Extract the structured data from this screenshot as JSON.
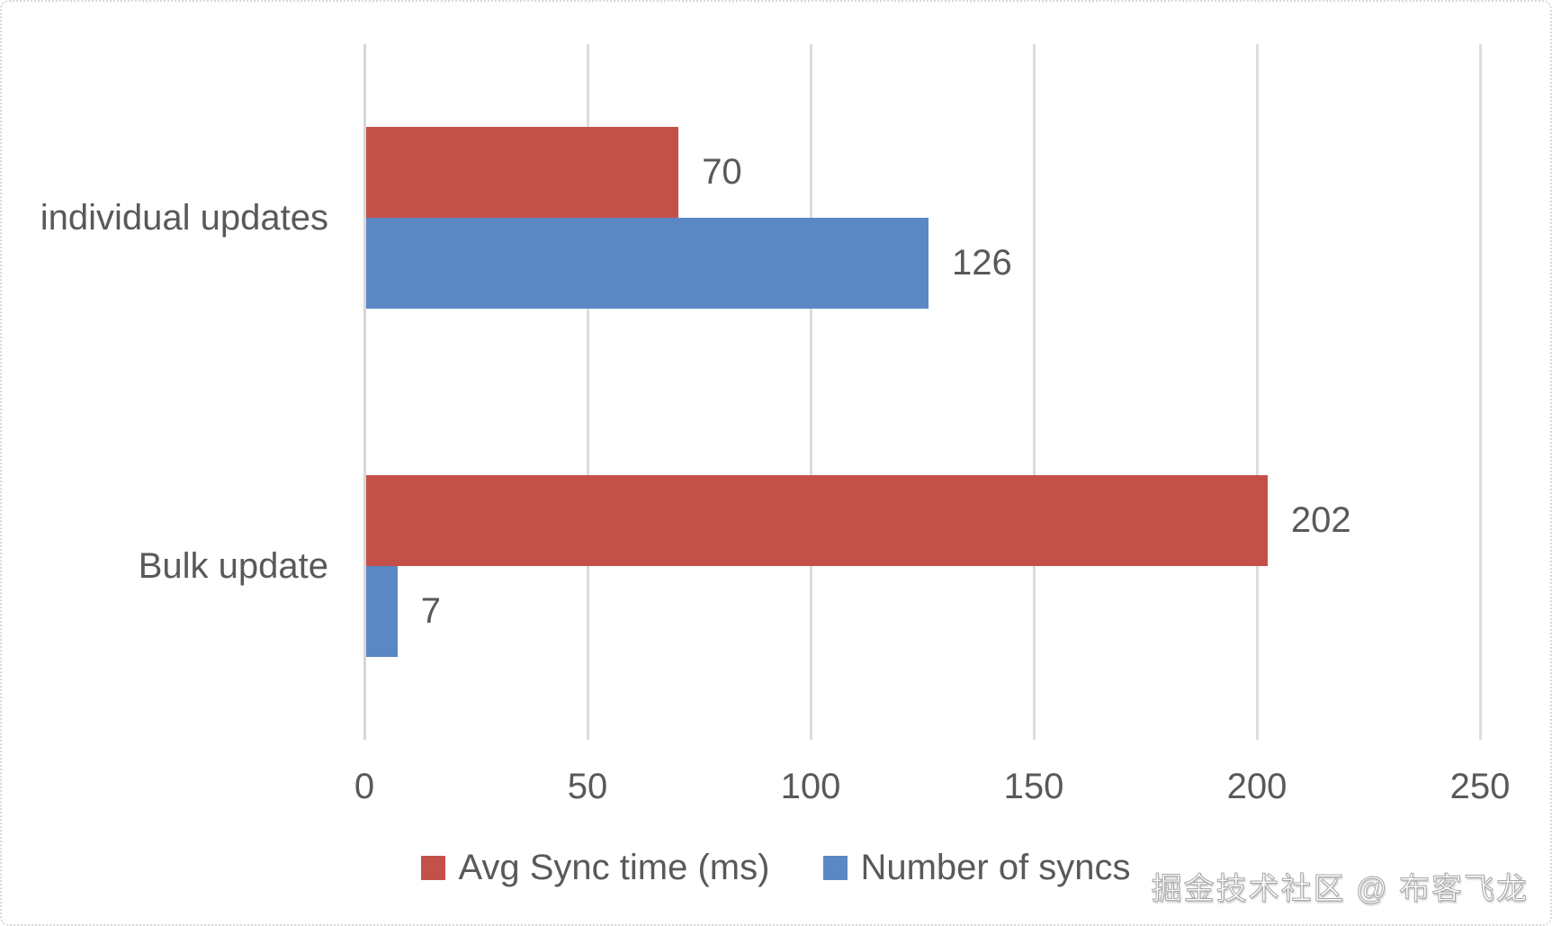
{
  "chart_data": {
    "type": "bar",
    "orientation": "horizontal",
    "title": "",
    "categories": [
      "individual updates",
      "Bulk update"
    ],
    "series": [
      {
        "name": "Avg Sync time (ms)",
        "color": "#C45149",
        "values": [
          70,
          202
        ]
      },
      {
        "name": "Number of syncs",
        "color": "#5B87C5",
        "values": [
          126,
          7
        ]
      }
    ],
    "xlim": [
      0,
      250
    ],
    "xticks": [
      "0",
      "50",
      "100",
      "150",
      "200",
      "250"
    ],
    "grid": true,
    "legend_position": "bottom",
    "data_labels": true
  },
  "colors": {
    "text": "#595959",
    "gridline": "#DDDDDD",
    "zero_line": "#D6D6D6",
    "background": "#FFFFFF",
    "frame_border": "#D9D9D9"
  },
  "watermark": {
    "text": "掘金技术社区 @ 布客飞龙"
  }
}
